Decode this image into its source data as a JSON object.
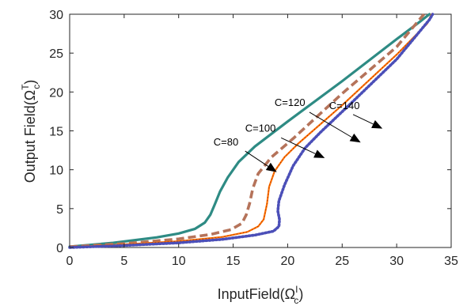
{
  "chart_data": {
    "type": "line",
    "xlabel": {
      "base": "InputField(Ω",
      "sub": "c",
      "sup": "I",
      "close": ")"
    },
    "ylabel": {
      "base": "Output Field(Ω",
      "sub": "c",
      "sup": "T",
      "close": ")"
    },
    "xlim": [
      0,
      35
    ],
    "ylim": [
      0,
      30
    ],
    "xticks": [
      "0",
      "5",
      "10",
      "15",
      "20",
      "25",
      "30",
      "35"
    ],
    "yticks": [
      "0",
      "5",
      "10",
      "15",
      "20",
      "25",
      "30"
    ],
    "grid": false,
    "series": [
      {
        "name": "C=80",
        "color": "#2e8b84",
        "style": "solid",
        "points": [
          [
            0,
            0.1
          ],
          [
            4,
            0.6
          ],
          [
            8,
            1.3
          ],
          [
            10,
            1.8
          ],
          [
            11.5,
            2.4
          ],
          [
            12.4,
            3.2
          ],
          [
            12.9,
            4.2
          ],
          [
            13.3,
            5.5
          ],
          [
            13.8,
            7.2
          ],
          [
            14.5,
            9.0
          ],
          [
            15.5,
            11.0
          ],
          [
            17,
            13.0
          ],
          [
            20,
            16.2
          ],
          [
            25,
            21.4
          ],
          [
            30,
            26.8
          ],
          [
            32,
            28.9
          ],
          [
            33,
            30
          ]
        ]
      },
      {
        "name": "C=100",
        "color": "#b5735a",
        "style": "dashed",
        "points": [
          [
            0,
            0.1
          ],
          [
            5,
            0.5
          ],
          [
            10,
            1.1
          ],
          [
            13,
            1.7
          ],
          [
            14.8,
            2.3
          ],
          [
            15.8,
            3.1
          ],
          [
            16.2,
            4.2
          ],
          [
            16.5,
            5.6
          ],
          [
            16.8,
            7.6
          ],
          [
            17.3,
            9.5
          ],
          [
            18.5,
            11.6
          ],
          [
            20.5,
            14.0
          ],
          [
            25,
            19.8
          ],
          [
            30,
            25.8
          ],
          [
            32.5,
            30
          ]
        ]
      },
      {
        "name": "C=120",
        "color": "#ff6f00",
        "style": "solid-dotted",
        "points": [
          [
            0,
            0.05
          ],
          [
            5,
            0.4
          ],
          [
            10,
            0.8
          ],
          [
            14,
            1.35
          ],
          [
            16.3,
            2.0
          ],
          [
            17.3,
            2.7
          ],
          [
            17.8,
            3.6
          ],
          [
            18.1,
            5.6
          ],
          [
            18.3,
            7.8
          ],
          [
            18.8,
            9.8
          ],
          [
            19.7,
            11.6
          ],
          [
            21,
            13.4
          ],
          [
            25,
            18.3
          ],
          [
            30,
            24.8
          ],
          [
            32.8,
            28.8
          ],
          [
            33.2,
            30
          ]
        ]
      },
      {
        "name": "C=140",
        "color": "#4b4fb8",
        "style": "dotted",
        "points": [
          [
            0,
            0.0
          ],
          [
            5,
            0.25
          ],
          [
            10,
            0.6
          ],
          [
            14,
            1.05
          ],
          [
            17,
            1.6
          ],
          [
            18.7,
            2.1
          ],
          [
            19.2,
            2.7
          ],
          [
            19.25,
            3.6
          ],
          [
            19.1,
            4.7
          ],
          [
            19.2,
            6.0
          ],
          [
            19.7,
            8.0
          ],
          [
            20.5,
            10.5
          ],
          [
            21.6,
            12.8
          ],
          [
            23,
            14.8
          ],
          [
            26,
            18.8
          ],
          [
            30,
            24.2
          ],
          [
            33,
            29.3
          ],
          [
            33.3,
            30
          ]
        ]
      }
    ],
    "annotations": [
      {
        "text": "C=80",
        "label": [
          13.2,
          13.1
        ],
        "arrow_from": [
          16.1,
          12.4
        ],
        "arrow_to": [
          19.0,
          9.7
        ]
      },
      {
        "text": "C=100",
        "label": [
          16.1,
          14.9
        ],
        "arrow_from": [
          19.4,
          14.1
        ],
        "arrow_to": [
          23.4,
          11.5
        ]
      },
      {
        "text": "C=120",
        "label": [
          18.8,
          18.2
        ],
        "arrow_from": [
          22.0,
          17.4
        ],
        "arrow_to": [
          26.7,
          13.5
        ]
      },
      {
        "text": "C=140",
        "label": [
          23.8,
          17.8
        ],
        "arrow_from": [
          26.0,
          17.1
        ],
        "arrow_to": [
          28.7,
          15.3
        ]
      }
    ]
  }
}
